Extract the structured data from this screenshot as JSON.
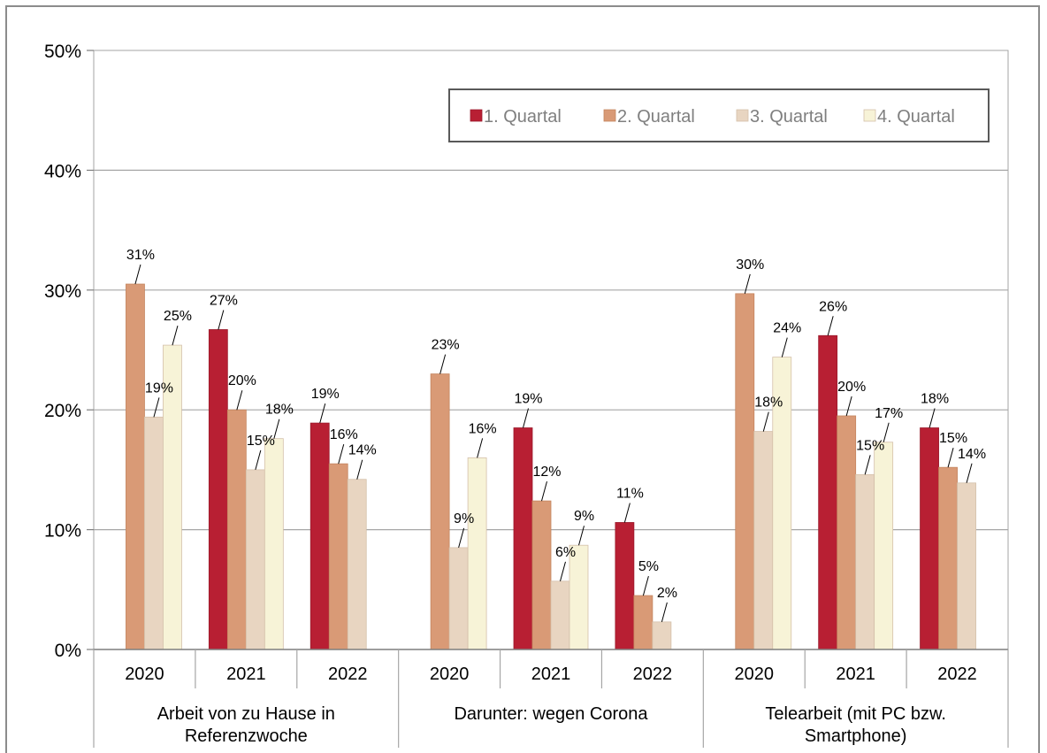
{
  "chart_data": {
    "type": "bar",
    "ylim": [
      0,
      50
    ],
    "yticks": [
      "0%",
      "10%",
      "20%",
      "30%",
      "40%",
      "50%"
    ],
    "grid": true,
    "legend_position": "top-right",
    "groups": [
      {
        "label": [
          "Arbeit von zu Hause in",
          "Referenzwoche"
        ],
        "years": [
          "2020",
          "2021",
          "2022"
        ]
      },
      {
        "label": [
          "Darunter: wegen Corona"
        ],
        "years": [
          "2020",
          "2021",
          "2022"
        ]
      },
      {
        "label": [
          "Telearbeit (mit PC bzw.",
          "Smartphone)"
        ],
        "years": [
          "2020",
          "2021",
          "2022"
        ]
      }
    ],
    "series": [
      {
        "name": "1. Quartal",
        "color": "#b81f33",
        "values": [
          null,
          26.7,
          18.9,
          null,
          18.5,
          10.6,
          null,
          26.2,
          18.5
        ],
        "labels": [
          null,
          "27%",
          "19%",
          null,
          "19%",
          "11%",
          null,
          "26%",
          "18%"
        ]
      },
      {
        "name": "2. Quartal",
        "color": "#d99a76",
        "values": [
          30.5,
          20.0,
          15.5,
          23.0,
          12.4,
          4.5,
          29.7,
          19.5,
          15.2
        ],
        "labels": [
          "31%",
          "20%",
          "16%",
          "23%",
          "12%",
          "5%",
          "30%",
          "20%",
          "15%"
        ]
      },
      {
        "name": "3. Quartal",
        "color": "#e8d5c1",
        "values": [
          19.4,
          15.0,
          14.2,
          8.5,
          5.7,
          2.3,
          18.2,
          14.6,
          13.9
        ],
        "labels": [
          "19%",
          "15%",
          "14%",
          "9%",
          "6%",
          "2%",
          "18%",
          "15%",
          "14%"
        ]
      },
      {
        "name": "4. Quartal",
        "color": "#f7f3d7",
        "values": [
          25.4,
          17.6,
          null,
          16.0,
          8.7,
          null,
          24.4,
          17.3,
          null
        ],
        "labels": [
          "25%",
          "18%",
          null,
          "16%",
          "9%",
          null,
          "24%",
          "17%",
          null
        ]
      }
    ]
  }
}
